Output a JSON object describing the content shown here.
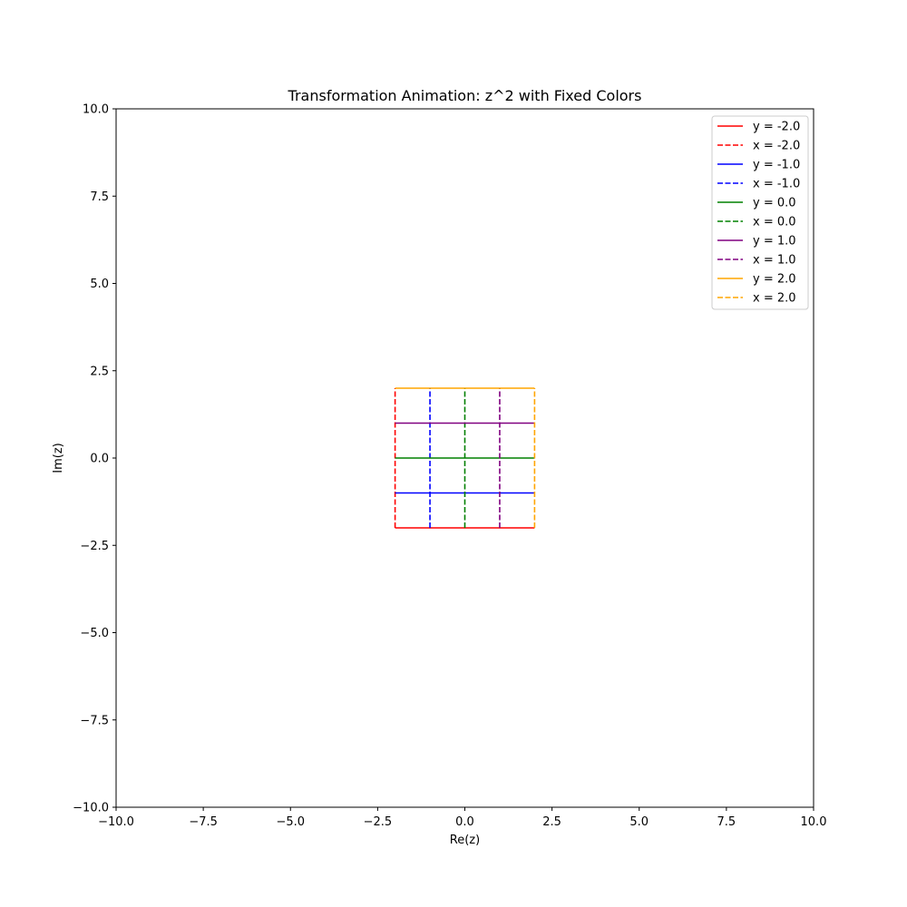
{
  "chart_data": {
    "type": "line",
    "title": "Transformation Animation: z^2 with Fixed Colors",
    "xlabel": "Re(z)",
    "ylabel": "Im(z)",
    "xlim": [
      -10,
      10
    ],
    "ylim": [
      -10,
      10
    ],
    "xticks": [
      -10.0,
      -7.5,
      -5.0,
      -2.5,
      0.0,
      2.5,
      5.0,
      7.5,
      10.0
    ],
    "yticks": [
      -10.0,
      -7.5,
      -5.0,
      -2.5,
      0.0,
      2.5,
      5.0,
      7.5,
      10.0
    ],
    "xtick_labels": [
      "−10.0",
      "−7.5",
      "−5.0",
      "−2.5",
      "0.0",
      "2.5",
      "5.0",
      "7.5",
      "10.0"
    ],
    "ytick_labels": [
      "−10.0",
      "−7.5",
      "−5.0",
      "−2.5",
      "0.0",
      "2.5",
      "5.0",
      "7.5",
      "10.0"
    ],
    "grid": false,
    "legend_position": "top-right",
    "series": [
      {
        "name": "y = -2.0",
        "style": "solid",
        "color": "#ff0000",
        "points": [
          [
            -2,
            -2
          ],
          [
            2,
            -2
          ]
        ]
      },
      {
        "name": "x = -2.0",
        "style": "dashed",
        "color": "#ff0000",
        "points": [
          [
            -2,
            -2
          ],
          [
            -2,
            2
          ]
        ]
      },
      {
        "name": "y = -1.0",
        "style": "solid",
        "color": "#0000ff",
        "points": [
          [
            -2,
            -1
          ],
          [
            2,
            -1
          ]
        ]
      },
      {
        "name": "x = -1.0",
        "style": "dashed",
        "color": "#0000ff",
        "points": [
          [
            -1,
            -2
          ],
          [
            -1,
            2
          ]
        ]
      },
      {
        "name": "y = 0.0",
        "style": "solid",
        "color": "#008000",
        "points": [
          [
            -2,
            0
          ],
          [
            2,
            0
          ]
        ]
      },
      {
        "name": "x = 0.0",
        "style": "dashed",
        "color": "#008000",
        "points": [
          [
            0,
            -2
          ],
          [
            0,
            2
          ]
        ]
      },
      {
        "name": "y = 1.0",
        "style": "solid",
        "color": "#800080",
        "points": [
          [
            -2,
            1
          ],
          [
            2,
            1
          ]
        ]
      },
      {
        "name": "x = 1.0",
        "style": "dashed",
        "color": "#800080",
        "points": [
          [
            1,
            -2
          ],
          [
            1,
            2
          ]
        ]
      },
      {
        "name": "y = 2.0",
        "style": "solid",
        "color": "#ffa500",
        "points": [
          [
            -2,
            2
          ],
          [
            2,
            2
          ]
        ]
      },
      {
        "name": "x = 2.0",
        "style": "dashed",
        "color": "#ffa500",
        "points": [
          [
            2,
            -2
          ],
          [
            2,
            2
          ]
        ]
      }
    ]
  }
}
